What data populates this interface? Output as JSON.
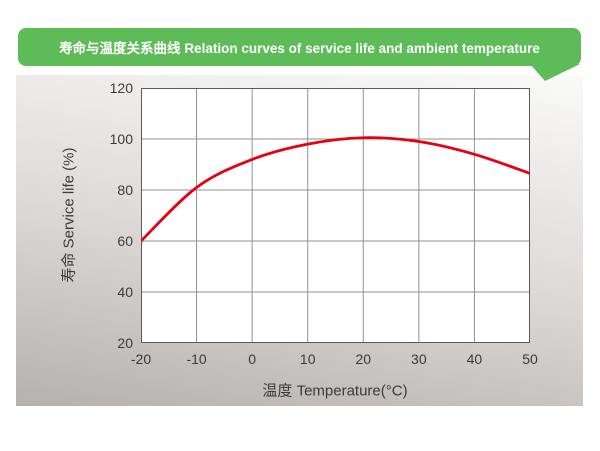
{
  "banner": {
    "title": "寿命与温度关系曲线 Relation curves of service life and ambient temperature",
    "color": "#5ebc58"
  },
  "colors": {
    "curve": "#e60012",
    "grid": "#909090",
    "plot_border": "#5a5a5a",
    "plot_bg": "#ffffff",
    "tick_text": "#3b3b3b"
  },
  "chart_data": {
    "type": "line",
    "title": "寿命与温度关系曲线 Relation curves of service life and ambient temperature",
    "xlabel": "温度 Temperature(°C)",
    "ylabel": "寿命 Service life (%)",
    "x": [
      -20,
      -10,
      0,
      10,
      20,
      30,
      40,
      50
    ],
    "series": [
      {
        "name": "service-life",
        "color": "#e60012",
        "values": [
          60,
          81,
          92,
          98,
          100.5,
          99,
          94,
          86.5
        ]
      }
    ],
    "xlim": [
      -20,
      50
    ],
    "ylim": [
      20,
      120
    ],
    "x_ticks": [
      -20,
      -10,
      0,
      10,
      20,
      30,
      40,
      50
    ],
    "y_ticks": [
      20,
      40,
      60,
      80,
      100,
      120
    ],
    "grid": true,
    "legend": false
  }
}
